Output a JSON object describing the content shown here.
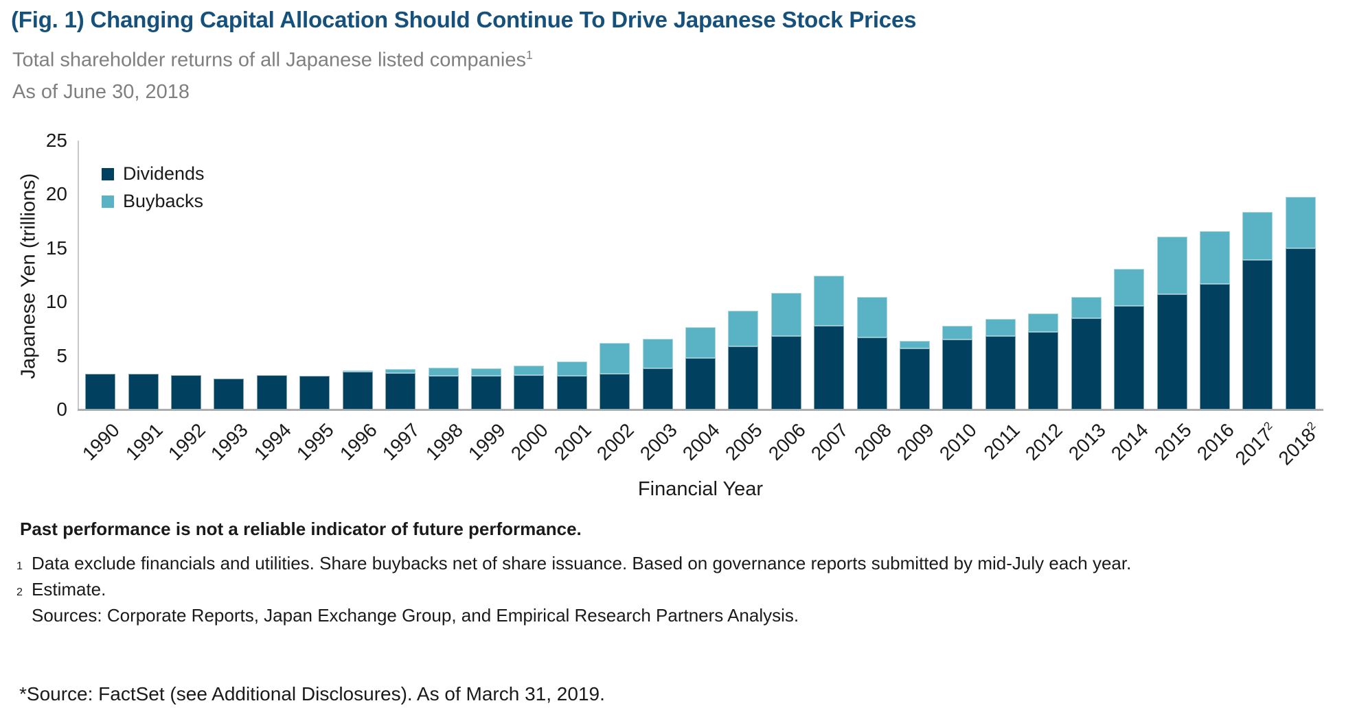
{
  "header": {
    "title": "(Fig. 1) Changing Capital Allocation Should Continue To Drive Japanese Stock Prices",
    "subtitle": "Total shareholder returns of all Japanese listed companies",
    "subtitle_sup": "1",
    "as_of": "As of June 30, 2018"
  },
  "chart_data": {
    "type": "bar",
    "stacked": true,
    "title": "",
    "xlabel": "Financial Year",
    "ylabel": "Japanese Yen (trillions)",
    "ylim": [
      0,
      25
    ],
    "yticks": [
      0,
      5,
      10,
      15,
      20,
      25
    ],
    "grid": false,
    "legend_position": "top-left-inside",
    "categories": [
      "1990",
      "1991",
      "1992",
      "1993",
      "1994",
      "1995",
      "1996",
      "1997",
      "1998",
      "1999",
      "2000",
      "2001",
      "2002",
      "2003",
      "2004",
      "2005",
      "2006",
      "2007",
      "2008",
      "2009",
      "2010",
      "2011",
      "2012",
      "2013",
      "2014",
      "2015",
      "2016",
      "2017",
      "2018"
    ],
    "category_sups": {
      "2017": "2",
      "2018": "2"
    },
    "series": [
      {
        "name": "Dividends",
        "color": "#02405F",
        "values": [
          3.3,
          3.3,
          3.2,
          2.9,
          3.2,
          3.1,
          3.5,
          3.4,
          3.1,
          3.1,
          3.2,
          3.1,
          3.3,
          3.8,
          4.8,
          5.9,
          6.8,
          7.8,
          6.7,
          5.7,
          6.5,
          6.8,
          7.2,
          8.5,
          9.6,
          10.7,
          11.7,
          13.9,
          15.0
        ]
      },
      {
        "name": "Buybacks",
        "color": "#5AB3C5",
        "values": [
          0,
          0,
          0,
          0,
          0,
          0,
          0.15,
          0.35,
          0.8,
          0.75,
          0.9,
          1.35,
          2.9,
          2.75,
          2.85,
          3.3,
          4.05,
          4.65,
          3.75,
          0.7,
          1.3,
          1.65,
          1.7,
          1.95,
          3.5,
          5.4,
          4.9,
          4.5,
          4.75
        ]
      }
    ]
  },
  "footnotes": {
    "warning": "Past performance is not a reliable indicator of future performance.",
    "notes": [
      {
        "sup": "1",
        "text": "Data exclude financials and utilities. Share buybacks net of share issuance. Based on governance reports submitted by mid-July each year."
      },
      {
        "sup": "2",
        "text": "Estimate."
      },
      {
        "sup": "",
        "text": "Sources: Corporate Reports, Japan Exchange Group, and Empirical Research Partners Analysis."
      }
    ]
  },
  "source_line": "*Source: FactSet (see Additional Disclosures). As of March 31, 2019."
}
